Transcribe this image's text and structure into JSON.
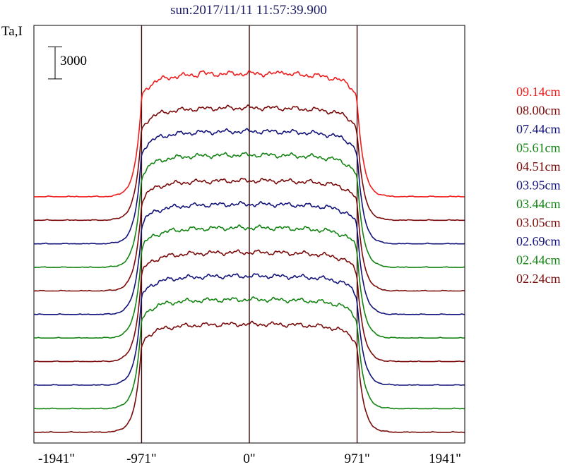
{
  "chart_data": {
    "type": "line",
    "title": "sun:2017/11/11 11:57:39.900",
    "ylabel": "Ta,I",
    "scale_bar_label": "3000",
    "scale_bar_value": 3000,
    "x_ticks": [
      {
        "value": -1941,
        "label": "-1941\""
      },
      {
        "value": -971,
        "label": "-971\""
      },
      {
        "value": 0,
        "label": "0\""
      },
      {
        "value": 971,
        "label": "971\""
      },
      {
        "value": 1941,
        "label": "1941\""
      }
    ],
    "xlim": [
      -1941,
      1941
    ],
    "ylim": [
      0,
      39000
    ],
    "vertical_lines": [
      -971,
      0,
      971
    ],
    "legend_position": "right",
    "series": [
      {
        "name": "09.14cm",
        "color": "#ee1c1c",
        "offset": 23000,
        "height": 11500
      },
      {
        "name": "08.00cm",
        "color": "#7a0a0a",
        "offset": 20800,
        "height": 10500
      },
      {
        "name": "07.44cm",
        "color": "#12127a",
        "offset": 18600,
        "height": 10500
      },
      {
        "name": "05.61cm",
        "color": "#138413",
        "offset": 16400,
        "height": 10500
      },
      {
        "name": "04.51cm",
        "color": "#7a0a0a",
        "offset": 14200,
        "height": 10300
      },
      {
        "name": "03.95cm",
        "color": "#12127a",
        "offset": 12000,
        "height": 10300
      },
      {
        "name": "03.44cm",
        "color": "#138413",
        "offset": 9800,
        "height": 10300
      },
      {
        "name": "03.05cm",
        "color": "#7a0a0a",
        "offset": 7600,
        "height": 10200
      },
      {
        "name": "02.69cm",
        "color": "#12127a",
        "offset": 5400,
        "height": 10200
      },
      {
        "name": "02.44cm",
        "color": "#138413",
        "offset": 3200,
        "height": 10200
      },
      {
        "name": "02.24cm",
        "color": "#7a0a0a",
        "offset": 1000,
        "height": 10100
      }
    ]
  }
}
